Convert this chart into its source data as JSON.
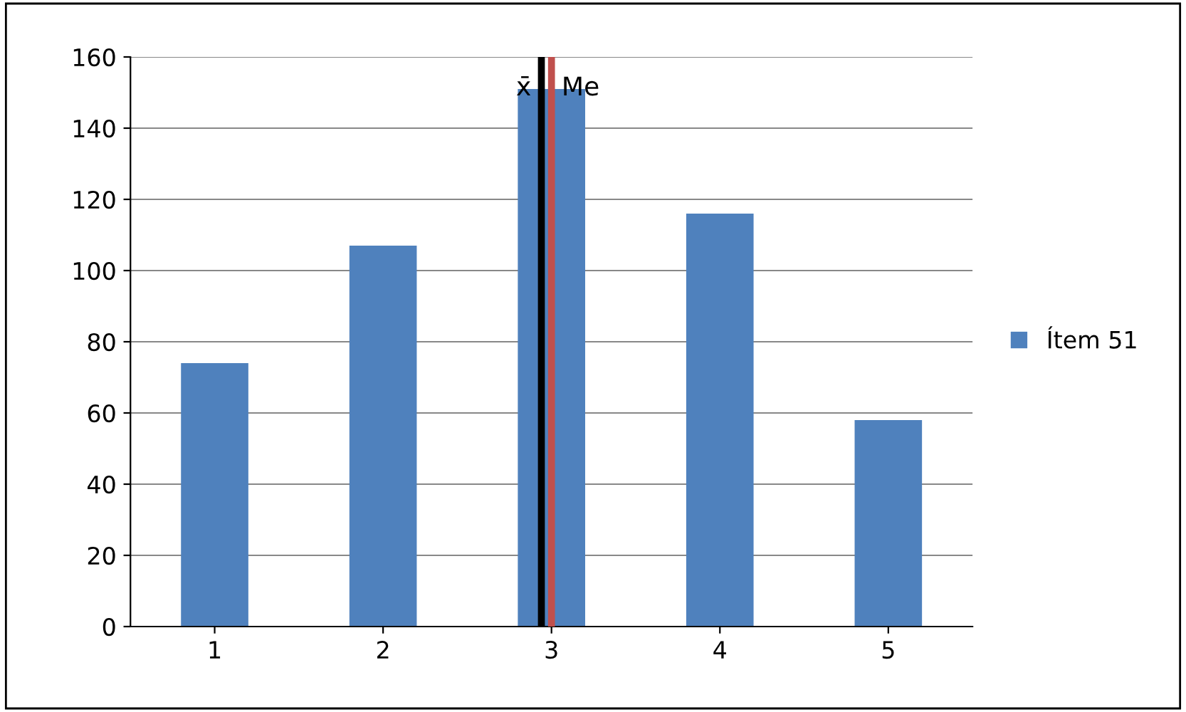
{
  "chart_data": {
    "type": "bar",
    "x": [
      1,
      2,
      3,
      4,
      5
    ],
    "xlim": [
      0.5,
      5.5
    ],
    "xticks": [
      1,
      2,
      3,
      4,
      5
    ],
    "series": [
      {
        "name": "Ítem 51",
        "color": "#4f81bd",
        "values": [
          74,
          107,
          151,
          116,
          58
        ]
      }
    ],
    "ylim": [
      0,
      160
    ],
    "yticks": [
      0,
      20,
      40,
      60,
      80,
      100,
      120,
      140,
      160
    ],
    "grid": "y",
    "legend": "right",
    "ref_lines": [
      {
        "axis": "x",
        "value": 2.94,
        "label": "x̄",
        "color": "#000000"
      },
      {
        "axis": "x",
        "value": 3.0,
        "label": "Me",
        "color": "#c0504d"
      }
    ]
  }
}
